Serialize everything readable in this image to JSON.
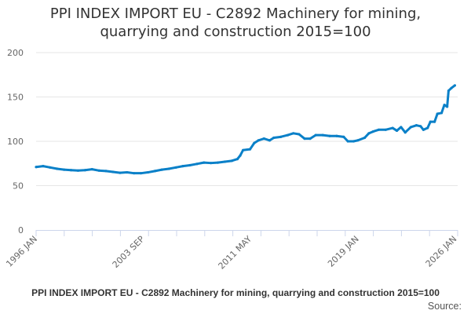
{
  "chart_data": {
    "type": "line",
    "title_line1": "PPI INDEX IMPORT EU - C2892 Machinery for mining,",
    "title_line2": "quarrying and construction 2015=100",
    "xlabel": "",
    "ylabel": "",
    "ylim": [
      0,
      200
    ],
    "xlim": [
      1996.0,
      2026.0
    ],
    "yticks": [
      "0",
      "50",
      "100",
      "150",
      "200"
    ],
    "xticks": [
      {
        "label": "1996 JAN",
        "x": 1996.0
      },
      {
        "label": "2003 SEP",
        "x": 2003.67
      },
      {
        "label": "2011 MAY",
        "x": 2011.33
      },
      {
        "label": "2019 JAN",
        "x": 2019.0
      },
      {
        "label": "2026 JAN",
        "x": 2026.0
      }
    ],
    "grid": true,
    "color": "#0a80c8",
    "series": [
      {
        "name": "PPI INDEX IMPORT EU - C2892 Machinery for mining, quarrying and construction 2015=100",
        "points": [
          [
            1996,
            71
          ],
          [
            1996.5,
            72
          ],
          [
            1997,
            70.5
          ],
          [
            1997.5,
            69
          ],
          [
            1998,
            68
          ],
          [
            1998.5,
            67.5
          ],
          [
            1999,
            67
          ],
          [
            1999.5,
            67.5
          ],
          [
            2000,
            68.5
          ],
          [
            2000.5,
            67
          ],
          [
            2001,
            66.5
          ],
          [
            2001.5,
            65.5
          ],
          [
            2002,
            64.5
          ],
          [
            2002.5,
            65
          ],
          [
            2003,
            64
          ],
          [
            2003.5,
            64
          ],
          [
            2004,
            65
          ],
          [
            2004.5,
            66.5
          ],
          [
            2005,
            68
          ],
          [
            2005.5,
            69
          ],
          [
            2006,
            70.5
          ],
          [
            2006.5,
            72
          ],
          [
            2007,
            73
          ],
          [
            2007.5,
            74.5
          ],
          [
            2008,
            76
          ],
          [
            2008.5,
            75.5
          ],
          [
            2009,
            76
          ],
          [
            2009.5,
            77
          ],
          [
            2010,
            78
          ],
          [
            2010.4,
            80
          ],
          [
            2010.6,
            84
          ],
          [
            2010.8,
            90
          ],
          [
            2011.3,
            91
          ],
          [
            2011.6,
            98
          ],
          [
            2011.9,
            101
          ],
          [
            2012.3,
            103
          ],
          [
            2012.7,
            101
          ],
          [
            2013,
            104
          ],
          [
            2013.5,
            105
          ],
          [
            2014,
            107
          ],
          [
            2014.4,
            109
          ],
          [
            2014.8,
            108
          ],
          [
            2015.2,
            103
          ],
          [
            2015.6,
            103
          ],
          [
            2016,
            107
          ],
          [
            2016.5,
            107
          ],
          [
            2017,
            106
          ],
          [
            2017.5,
            106
          ],
          [
            2018,
            105
          ],
          [
            2018.3,
            100
          ],
          [
            2018.7,
            100
          ],
          [
            2019,
            101
          ],
          [
            2019.5,
            104
          ],
          [
            2019.8,
            109
          ],
          [
            2020.1,
            111
          ],
          [
            2020.5,
            113
          ],
          [
            2021,
            113
          ],
          [
            2021.5,
            115
          ],
          [
            2021.8,
            112
          ],
          [
            2022.1,
            116
          ],
          [
            2022.4,
            110
          ],
          [
            2022.8,
            116
          ],
          [
            2023.2,
            118
          ],
          [
            2023.5,
            117
          ],
          [
            2023.7,
            113
          ],
          [
            2024,
            115
          ],
          [
            2024.2,
            122
          ],
          [
            2024.5,
            122
          ],
          [
            2024.7,
            131
          ],
          [
            2025,
            132
          ],
          [
            2025.2,
            141
          ],
          [
            2025.4,
            139
          ],
          [
            2025.5,
            157
          ],
          [
            2025.7,
            160
          ],
          [
            2025.95,
            163
          ]
        ]
      }
    ]
  },
  "footer": "PPI INDEX IMPORT EU - C2892 Machinery for mining, quarrying and construction 2015=100",
  "source": "Source:"
}
